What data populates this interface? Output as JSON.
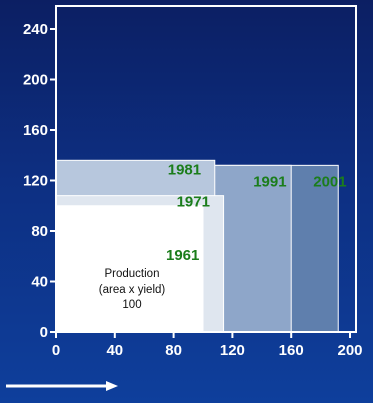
{
  "chart_data": {
    "type": "area",
    "title": "",
    "xlabel": "",
    "ylabel": "",
    "xlim": [
      0,
      200
    ],
    "ylim": [
      0,
      260
    ],
    "x_ticks": [
      "0",
      "40",
      "80",
      "120",
      "160",
      "200"
    ],
    "y_ticks": [
      "0",
      "40",
      "80",
      "120",
      "160",
      "200",
      "240"
    ],
    "series": [
      {
        "name": "2001",
        "area": 192,
        "yield": 132
      },
      {
        "name": "1991",
        "area": 160,
        "yield": 132
      },
      {
        "name": "1981",
        "area": 108,
        "yield": 136
      },
      {
        "name": "1971",
        "area": 114,
        "yield": 108
      },
      {
        "name": "1961",
        "area": 100,
        "yield": 100
      }
    ],
    "annotation": {
      "lines": [
        "Production",
        "(area x yield)",
        "100"
      ]
    },
    "colors": {
      "2001": "#5f7fad",
      "1991": "#8ea6c9",
      "1981": "#b7c7dd",
      "1971": "#dfe6ef",
      "1961": "#ffffff",
      "year_label": "#1b7d1b"
    }
  }
}
